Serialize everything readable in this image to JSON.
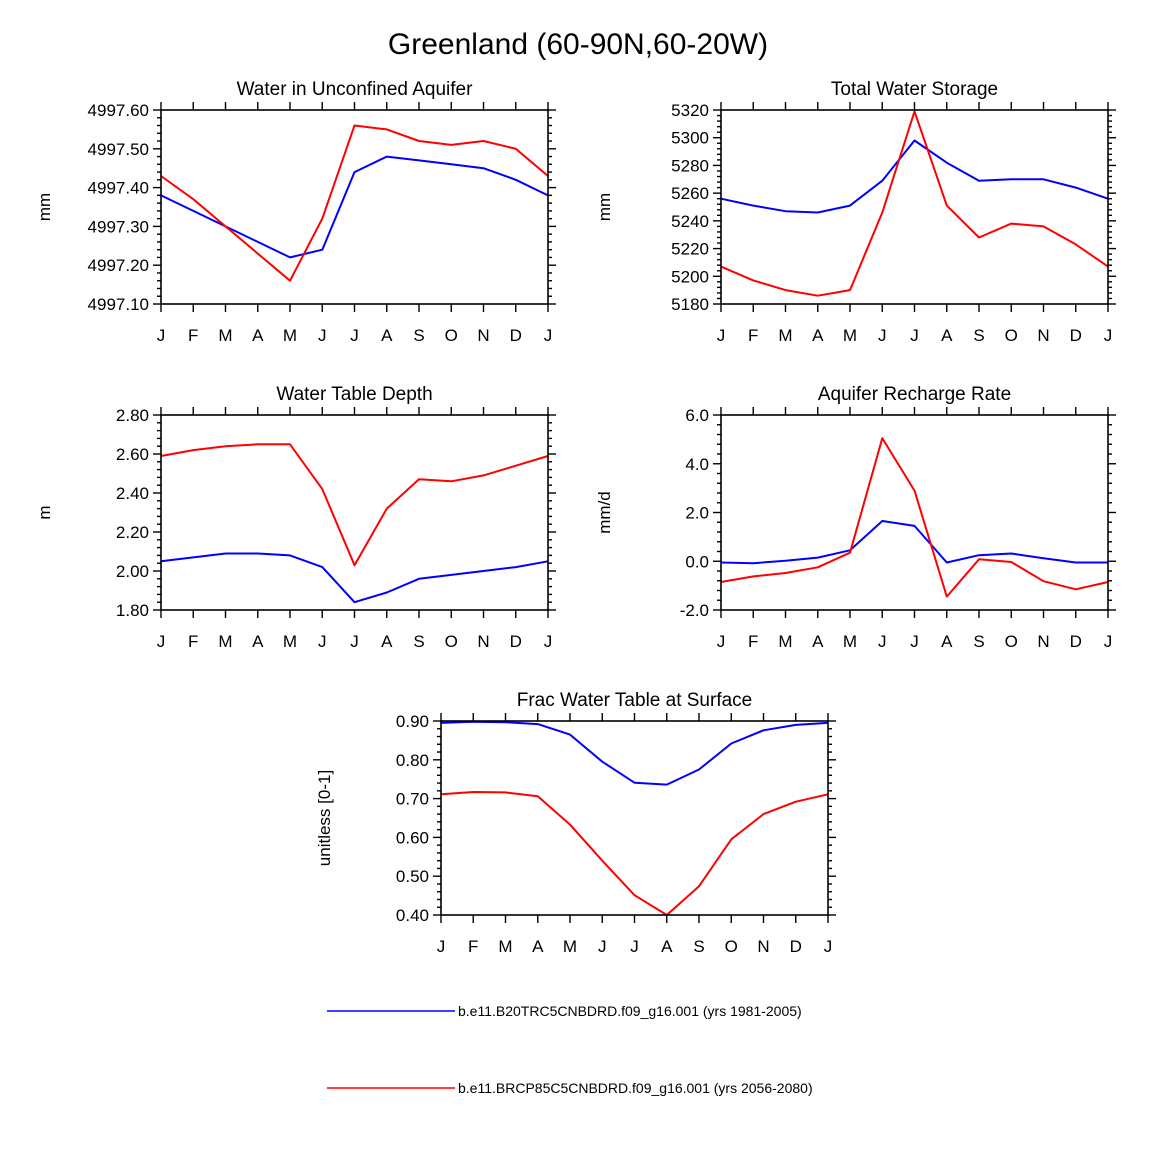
{
  "figure": {
    "title": "Greenland (60-90N,60-20W)"
  },
  "months": [
    "J",
    "F",
    "M",
    "A",
    "M",
    "J",
    "J",
    "A",
    "S",
    "O",
    "N",
    "D",
    "J"
  ],
  "colors": {
    "series_1": "#0000ff",
    "series_2": "#ff0000"
  },
  "legend": [
    {
      "label": "b.e11.B20TRC5CNBDRD.f09_g16.001 (yrs 1981-2005)",
      "color": "#0000ff"
    },
    {
      "label": "b.e11.BRCP85C5CNBDRD.f09_g16.001 (yrs 2056-2080)",
      "color": "#ff0000"
    }
  ],
  "chart_data": [
    {
      "type": "line",
      "title": "Water in Unconfined Aquifer",
      "ylabel": "mm",
      "ylim": [
        4997.1,
        4997.6
      ],
      "yticks": [
        4997.1,
        4997.2,
        4997.3,
        4997.4,
        4997.5,
        4997.6
      ],
      "ytick_labels": [
        "4997.10",
        "4997.20",
        "4997.30",
        "4997.40",
        "4997.50",
        "4997.60"
      ],
      "x": [
        "J",
        "F",
        "M",
        "A",
        "M",
        "J",
        "J",
        "A",
        "S",
        "O",
        "N",
        "D",
        "J"
      ],
      "series": [
        {
          "name": "b.e11.B20TRC5CNBDRD.f09_g16.001 (yrs 1981-2005)",
          "values": [
            4997.38,
            4997.34,
            4997.3,
            4997.26,
            4997.22,
            4997.24,
            4997.44,
            4997.48,
            4997.47,
            4997.46,
            4997.45,
            4997.42,
            4997.38
          ]
        },
        {
          "name": "b.e11.BRCP85C5CNBDRD.f09_g16.001 (yrs 2056-2080)",
          "values": [
            4997.43,
            4997.37,
            4997.3,
            4997.23,
            4997.16,
            4997.32,
            4997.56,
            4997.55,
            4997.52,
            4997.51,
            4997.52,
            4997.5,
            4997.43
          ]
        }
      ]
    },
    {
      "type": "line",
      "title": "Total Water Storage",
      "ylabel": "mm",
      "ylim": [
        5180,
        5320
      ],
      "yticks": [
        5180,
        5200,
        5220,
        5240,
        5260,
        5280,
        5300,
        5320
      ],
      "ytick_labels": [
        "5180",
        "5200",
        "5220",
        "5240",
        "5260",
        "5280",
        "5300",
        "5320"
      ],
      "x": [
        "J",
        "F",
        "M",
        "A",
        "M",
        "J",
        "J",
        "A",
        "S",
        "O",
        "N",
        "D",
        "J"
      ],
      "series": [
        {
          "name": "b.e11.B20TRC5CNBDRD.f09_g16.001 (yrs 1981-2005)",
          "values": [
            5256,
            5251,
            5247,
            5246,
            5251,
            5269,
            5298,
            5282,
            5269,
            5270,
            5270,
            5264,
            5256
          ]
        },
        {
          "name": "b.e11.BRCP85C5CNBDRD.f09_g16.001 (yrs 2056-2080)",
          "values": [
            5207,
            5197,
            5190,
            5186,
            5190,
            5246,
            5319,
            5251,
            5228,
            5238,
            5236,
            5223,
            5207
          ]
        }
      ]
    },
    {
      "type": "line",
      "title": "Water Table Depth",
      "ylabel": "m",
      "ylim": [
        1.8,
        2.8
      ],
      "yticks": [
        1.8,
        2.0,
        2.2,
        2.4,
        2.6,
        2.8
      ],
      "ytick_labels": [
        "1.80",
        "2.00",
        "2.20",
        "2.40",
        "2.60",
        "2.80"
      ],
      "x": [
        "J",
        "F",
        "M",
        "A",
        "M",
        "J",
        "J",
        "A",
        "S",
        "O",
        "N",
        "D",
        "J"
      ],
      "series": [
        {
          "name": "b.e11.B20TRC5CNBDRD.f09_g16.001 (yrs 1981-2005)",
          "values": [
            2.05,
            2.07,
            2.09,
            2.09,
            2.08,
            2.02,
            1.84,
            1.89,
            1.96,
            1.98,
            2.0,
            2.02,
            2.05
          ]
        },
        {
          "name": "b.e11.BRCP85C5CNBDRD.f09_g16.001 (yrs 2056-2080)",
          "values": [
            2.59,
            2.62,
            2.64,
            2.65,
            2.65,
            2.42,
            2.03,
            2.32,
            2.47,
            2.46,
            2.49,
            2.54,
            2.59
          ]
        }
      ]
    },
    {
      "type": "line",
      "title": "Aquifer Recharge Rate",
      "ylabel": "mm/d",
      "ylim": [
        -2.0,
        6.0
      ],
      "yticks": [
        -2.0,
        0.0,
        2.0,
        4.0,
        6.0
      ],
      "ytick_labels": [
        "-2.0",
        "0.0",
        "2.0",
        "4.0",
        "6.0"
      ],
      "x": [
        "J",
        "F",
        "M",
        "A",
        "M",
        "J",
        "J",
        "A",
        "S",
        "O",
        "N",
        "D",
        "J"
      ],
      "series": [
        {
          "name": "b.e11.B20TRC5CNBDRD.f09_g16.001 (yrs 1981-2005)",
          "values": [
            -0.05,
            -0.08,
            0.02,
            0.15,
            0.45,
            1.65,
            1.45,
            -0.05,
            0.25,
            0.32,
            0.12,
            -0.05,
            -0.05
          ]
        },
        {
          "name": "b.e11.BRCP85C5CNBDRD.f09_g16.001 (yrs 2056-2080)",
          "values": [
            -0.85,
            -0.62,
            -0.48,
            -0.25,
            0.35,
            5.05,
            2.9,
            -1.45,
            0.08,
            -0.03,
            -0.82,
            -1.15,
            -0.85
          ]
        }
      ]
    },
    {
      "type": "line",
      "title": "Frac Water Table at Surface",
      "ylabel": "unitless [0-1]",
      "ylim": [
        0.4,
        0.9
      ],
      "yticks": [
        0.4,
        0.5,
        0.6,
        0.7,
        0.8,
        0.9
      ],
      "ytick_labels": [
        "0.40",
        "0.50",
        "0.60",
        "0.70",
        "0.80",
        "0.90"
      ],
      "x": [
        "J",
        "F",
        "M",
        "A",
        "M",
        "J",
        "J",
        "A",
        "S",
        "O",
        "N",
        "D",
        "J"
      ],
      "series": [
        {
          "name": "b.e11.B20TRC5CNBDRD.f09_g16.001 (yrs 1981-2005)",
          "values": [
            0.895,
            0.898,
            0.897,
            0.892,
            0.865,
            0.795,
            0.741,
            0.736,
            0.775,
            0.842,
            0.876,
            0.89,
            0.895
          ]
        },
        {
          "name": "b.e11.BRCP85C5CNBDRD.f09_g16.001 (yrs 2056-2080)",
          "values": [
            0.711,
            0.717,
            0.716,
            0.706,
            0.633,
            0.54,
            0.451,
            0.4,
            0.474,
            0.595,
            0.66,
            0.692,
            0.711
          ]
        }
      ]
    }
  ]
}
